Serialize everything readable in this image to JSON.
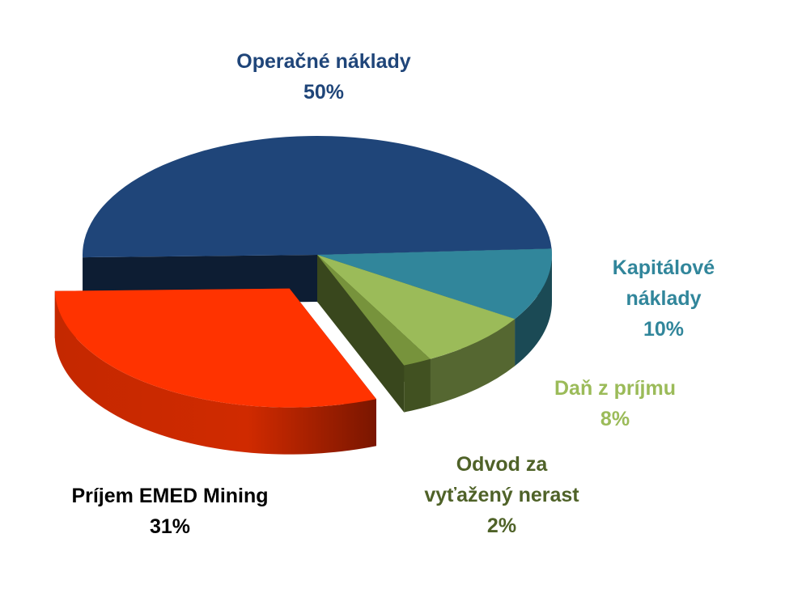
{
  "chart_data": {
    "type": "pie",
    "three_d": true,
    "exploded_slice": "Príjem EMED Mining",
    "slices": [
      {
        "key": "operacne",
        "name": "Operačné náklady",
        "value": 50,
        "value_label": "50%",
        "color": "#1f4579"
      },
      {
        "key": "kapitalove",
        "name": "Kapitálové náklady",
        "name_lines": [
          "Kapitálové",
          "náklady"
        ],
        "value": 10,
        "value_label": "10%",
        "color": "#31869b"
      },
      {
        "key": "dan",
        "name": "Daň z príjmu",
        "value": 8,
        "value_label": "8%",
        "color": "#9bbb59"
      },
      {
        "key": "odvod",
        "name": "Odvod za vyťažený nerast",
        "name_lines": [
          "Odvod za",
          "vyťažený nerast"
        ],
        "value": 2,
        "value_label": "2%",
        "color": "#77933c"
      },
      {
        "key": "prijem",
        "name": "Príjem EMED Mining",
        "value": 31,
        "value_label": "31%",
        "color": "#ff3300"
      }
    ]
  },
  "labels": {
    "operacne": {
      "line1": "Operačné náklady",
      "value": "50%",
      "color": "#1f4579"
    },
    "kapitalove": {
      "line1": "Kapitálové",
      "line2": "náklady",
      "value": "10%",
      "color": "#31869b"
    },
    "dan": {
      "line1": "Daň z príjmu",
      "value": "8%",
      "color": "#9bbb59"
    },
    "odvod": {
      "line1": "Odvod za",
      "line2": "vyťažený nerast",
      "value": "2%",
      "color": "#4f6228"
    },
    "prijem": {
      "line1": "Príjem EMED Mining",
      "value": "31%",
      "color": "#000000"
    }
  }
}
